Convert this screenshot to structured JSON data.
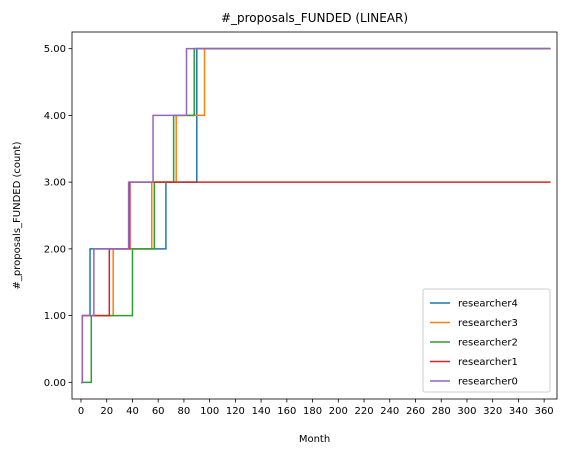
{
  "chart_data": {
    "type": "line",
    "step": "post",
    "title": "#_proposals_FUNDED (LINEAR)",
    "xlabel": "Month",
    "ylabel": "#_proposals_FUNDED (count)",
    "xlim": [
      -7,
      370
    ],
    "ylim": [
      -0.25,
      5.25
    ],
    "x_ticks": [
      0,
      20,
      40,
      60,
      80,
      100,
      120,
      140,
      160,
      180,
      200,
      220,
      240,
      260,
      280,
      300,
      320,
      340,
      360
    ],
    "y_ticks": [
      0,
      1,
      2,
      3,
      4,
      5
    ],
    "y_tick_labels": [
      "0.00",
      "1.00",
      "2.00",
      "3.00",
      "4.00",
      "5.00"
    ],
    "legend_location": "lower-right",
    "grid": false,
    "series": [
      {
        "name": "researcher4",
        "color": "#1f77b4",
        "x": [
          0,
          1,
          7,
          22,
          38,
          66,
          90,
          365
        ],
        "y": [
          0,
          1,
          2,
          2,
          2,
          3,
          5,
          5
        ]
      },
      {
        "name": "researcher3",
        "color": "#ff7f0e",
        "x": [
          0,
          1,
          10,
          25,
          55,
          74,
          96,
          365
        ],
        "y": [
          0,
          1,
          1,
          2,
          3,
          4,
          5,
          5
        ]
      },
      {
        "name": "researcher2",
        "color": "#2ca02c",
        "x": [
          0,
          1,
          8,
          40,
          57,
          72,
          88,
          365
        ],
        "y": [
          0,
          0,
          1,
          2,
          3,
          4,
          5,
          5
        ]
      },
      {
        "name": "researcher1",
        "color": "#d62728",
        "x": [
          0,
          1,
          22,
          38,
          365
        ],
        "y": [
          0,
          1,
          2,
          3,
          3
        ]
      },
      {
        "name": "researcher0",
        "color": "#9467bd",
        "x": [
          0,
          1,
          10,
          37,
          56,
          82,
          365
        ],
        "y": [
          0,
          1,
          2,
          3,
          4,
          5,
          5
        ]
      }
    ]
  }
}
